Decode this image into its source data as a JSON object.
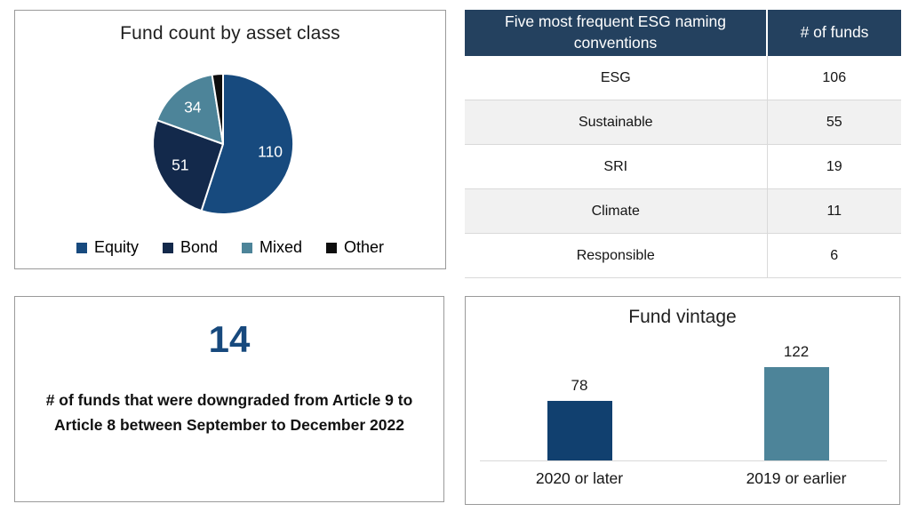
{
  "stat": {
    "value": "14",
    "description": "# of funds that were downgraded from Article 9 to Article 8 between September to December 2022"
  },
  "chart_data": [
    {
      "type": "pie",
      "title": "Fund count by asset class",
      "labels": [
        "Equity",
        "Bond",
        "Mixed",
        "Other"
      ],
      "values": [
        110,
        51,
        34,
        5
      ],
      "data_labels": [
        "110",
        "51",
        "34",
        ""
      ],
      "colors": [
        "#174A7E",
        "#13294B",
        "#4D8499",
        "#0D0D0D"
      ],
      "label_color": "#ffffff",
      "start_angle_deg": 0,
      "direction": "clockwise",
      "legend_position": "bottom"
    },
    {
      "type": "bar",
      "title": "Fund vintage",
      "categories": [
        "2020 or later",
        "2019 or earlier"
      ],
      "values": [
        78,
        122
      ],
      "colors": [
        "#11406F",
        "#4D8499"
      ],
      "ylim": [
        0,
        130
      ],
      "grid": false,
      "data_labels": true
    },
    {
      "type": "table",
      "columns": [
        "Five most frequent ESG naming conventions",
        "# of funds"
      ],
      "rows": [
        [
          "ESG",
          "106"
        ],
        [
          "Sustainable",
          "55"
        ],
        [
          "SRI",
          "19"
        ],
        [
          "Climate",
          "11"
        ],
        [
          "Responsible",
          "6"
        ]
      ],
      "header_bg": "#24415F",
      "stripe_bg": "#F1F1F1"
    }
  ]
}
